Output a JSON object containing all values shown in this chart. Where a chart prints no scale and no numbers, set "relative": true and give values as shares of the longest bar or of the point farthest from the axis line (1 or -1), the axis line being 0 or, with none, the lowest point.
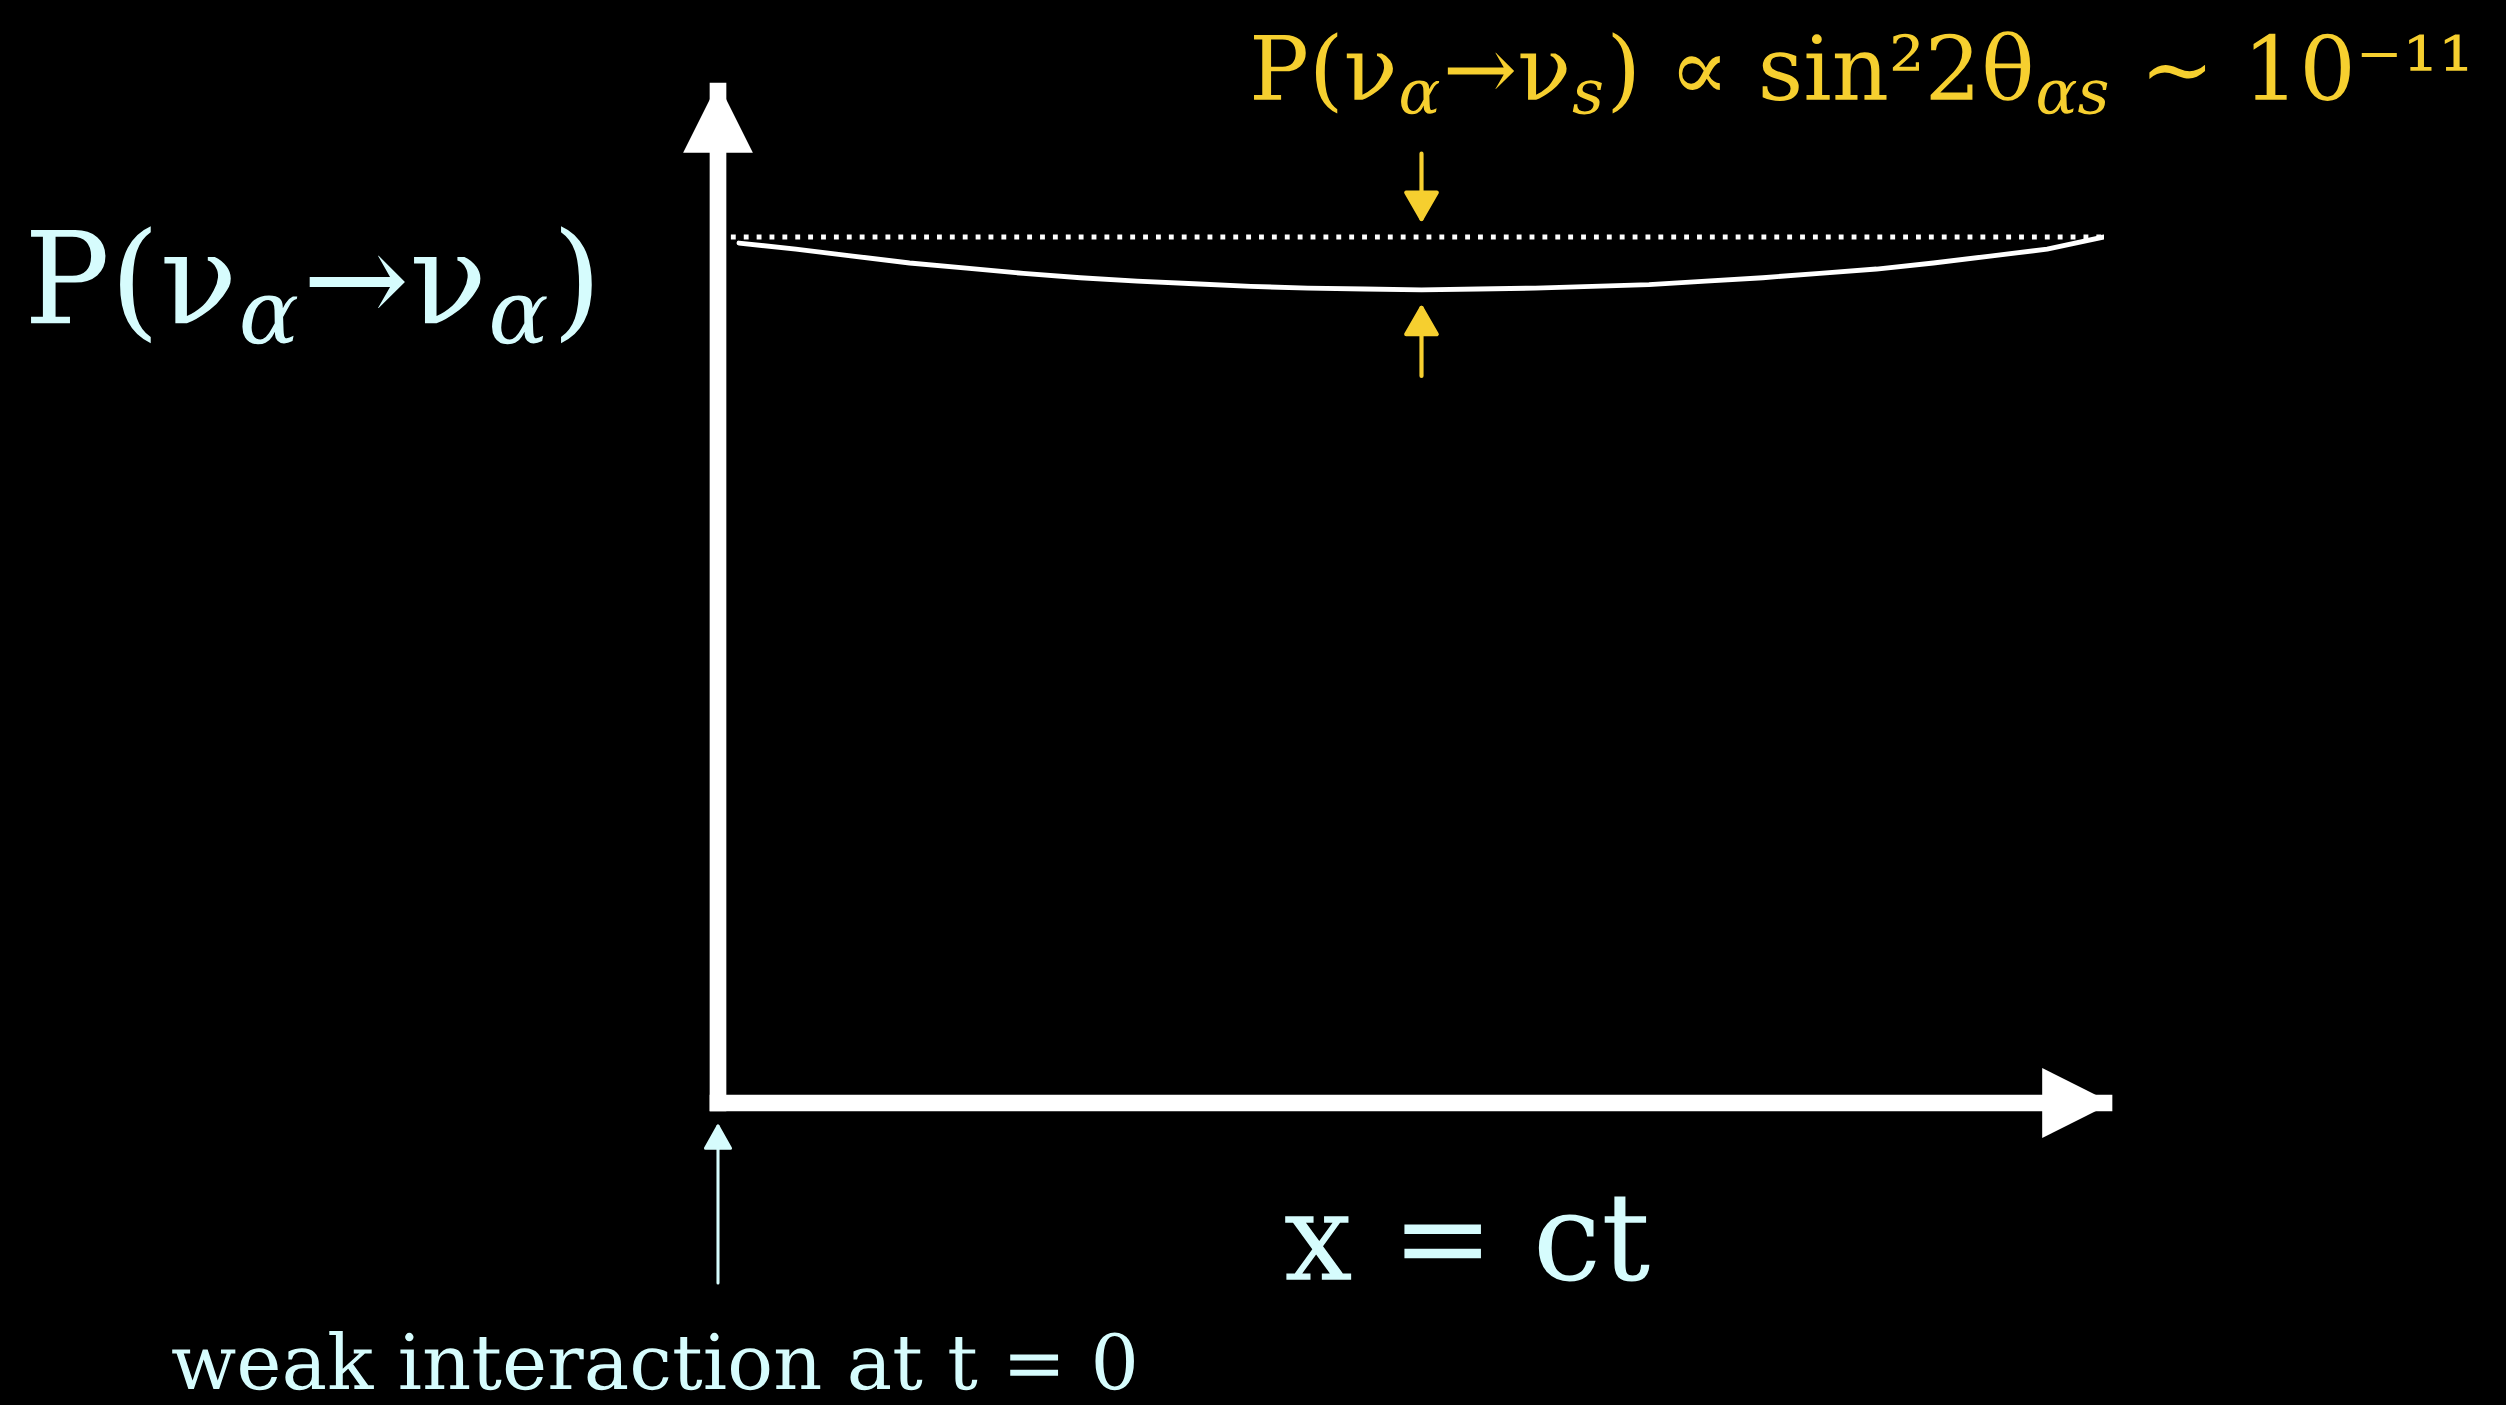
{
  "chart_data": {
    "type": "line",
    "relative": true,
    "xlabel": "x = ct",
    "ylabel": "P(ν$_{α}$→ν$_{α}$)",
    "categories": [
      null,
      null,
      null,
      null,
      null,
      null,
      null,
      null,
      null,
      null,
      null,
      null,
      null,
      null,
      null,
      null,
      null,
      null,
      null,
      null,
      null,
      null,
      null,
      null,
      null
    ],
    "series": [
      {
        "color": "#ffffff",
        "values": [
          0.993,
          0.986,
          0.978,
          0.97,
          0.964,
          0.958,
          0.953,
          0.949,
          0.946,
          0.943,
          0.941,
          0.94,
          0.939,
          0.94,
          0.941,
          0.943,
          0.945,
          0.949,
          0.953,
          0.958,
          0.963,
          0.97,
          0.978,
          0.986,
          1.0
        ]
      }
    ],
    "ref_lines": [
      {
        "axis": "y",
        "value": 1,
        "color": "#ffffff",
        "line_style": "dotted"
      }
    ],
    "annotations": [
      "P(ν$_{α}$→ν$_{s}$) ∝ sin²2θ$_{αs}$ ~ 10⁻¹¹",
      "weak interaction at t = 0"
    ]
  }
}
